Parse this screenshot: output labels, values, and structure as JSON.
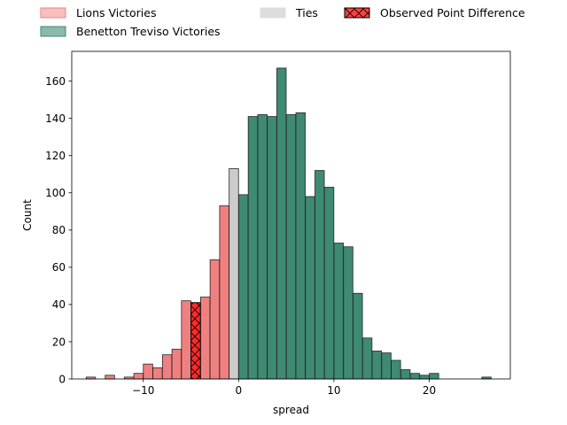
{
  "chart_data": {
    "type": "bar",
    "title": "",
    "xlabel": "spread",
    "ylabel": "Count",
    "xlim": [
      -17.5,
      28.5
    ],
    "ylim": [
      0,
      176
    ],
    "xticks": [
      -10,
      0,
      10,
      20
    ],
    "yticks": [
      0,
      20,
      40,
      60,
      80,
      100,
      120,
      140,
      160
    ],
    "grid": false,
    "legend_placement": "top (above plot, 3 columns)",
    "bin_width": 0.98,
    "series": [
      {
        "name": "Lions Victories",
        "color": "#f08080",
        "bars": [
          {
            "x": -15.5,
            "y": 1
          },
          {
            "x": -13.5,
            "y": 2
          },
          {
            "x": -11.5,
            "y": 1
          },
          {
            "x": -10.5,
            "y": 3
          },
          {
            "x": -9.5,
            "y": 8
          },
          {
            "x": -8.5,
            "y": 6
          },
          {
            "x": -7.5,
            "y": 13
          },
          {
            "x": -6.5,
            "y": 16
          },
          {
            "x": -5.5,
            "y": 42
          },
          {
            "x": -4.5,
            "y": 41
          },
          {
            "x": -3.5,
            "y": 44
          },
          {
            "x": -2.5,
            "y": 64
          },
          {
            "x": -1.5,
            "y": 93
          }
        ]
      },
      {
        "name": "Ties",
        "color": "#cccccc",
        "bars": [
          {
            "x": -0.5,
            "y": 113
          }
        ]
      },
      {
        "name": "Benetton Treviso Victories",
        "color": "#3e8a73",
        "bars": [
          {
            "x": 0.5,
            "y": 99
          },
          {
            "x": 1.5,
            "y": 141
          },
          {
            "x": 2.5,
            "y": 142
          },
          {
            "x": 3.5,
            "y": 141
          },
          {
            "x": 4.5,
            "y": 167
          },
          {
            "x": 5.5,
            "y": 142
          },
          {
            "x": 6.5,
            "y": 143
          },
          {
            "x": 7.5,
            "y": 98
          },
          {
            "x": 8.5,
            "y": 112
          },
          {
            "x": 9.5,
            "y": 103
          },
          {
            "x": 10.5,
            "y": 73
          },
          {
            "x": 11.5,
            "y": 71
          },
          {
            "x": 12.5,
            "y": 46
          },
          {
            "x": 13.5,
            "y": 22
          },
          {
            "x": 14.5,
            "y": 15
          },
          {
            "x": 15.5,
            "y": 14
          },
          {
            "x": 16.5,
            "y": 10
          },
          {
            "x": 17.5,
            "y": 5
          },
          {
            "x": 18.5,
            "y": 3
          },
          {
            "x": 19.5,
            "y": 2
          },
          {
            "x": 20.5,
            "y": 3
          },
          {
            "x": 26.0,
            "y": 1
          }
        ]
      },
      {
        "name": "Observed Point Difference",
        "color": "#ff2a2a",
        "bars": [
          {
            "x": -4.5,
            "y": 41
          }
        ]
      }
    ],
    "legend": [
      {
        "label": "Lions Victories",
        "color": "#f08080",
        "alpha": 0.5,
        "hatch": false
      },
      {
        "label": "Benetton Treviso Victories",
        "color": "#3e8a73",
        "alpha": 0.6,
        "hatch": false
      },
      {
        "label": "Ties",
        "color": "#dddddd",
        "alpha": 1,
        "hatch": false
      },
      {
        "label": "Observed Point Difference",
        "color": "#ff4040",
        "alpha": 1,
        "hatch": true
      }
    ]
  }
}
